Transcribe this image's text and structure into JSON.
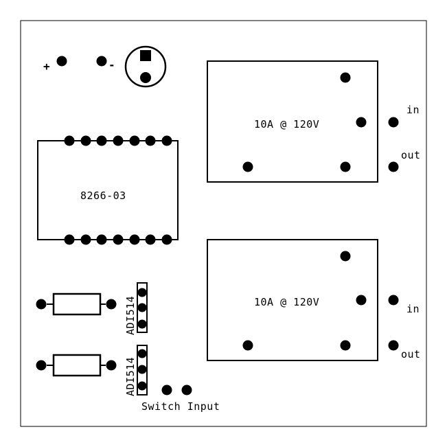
{
  "board": {
    "capacitor": {
      "plus_label": "+",
      "minus_label": "-"
    },
    "ic": {
      "label": "8266-03"
    },
    "relays": [
      {
        "label": "10A @ 120V",
        "in_label": "in",
        "out_label": "out"
      },
      {
        "label": "10A @ 120V",
        "in_label": "in",
        "out_label": "out"
      }
    ],
    "optocouplers": [
      {
        "label": "ADI514"
      },
      {
        "label": "ADI514"
      }
    ],
    "switch_input": {
      "label": "Switch Input"
    }
  }
}
